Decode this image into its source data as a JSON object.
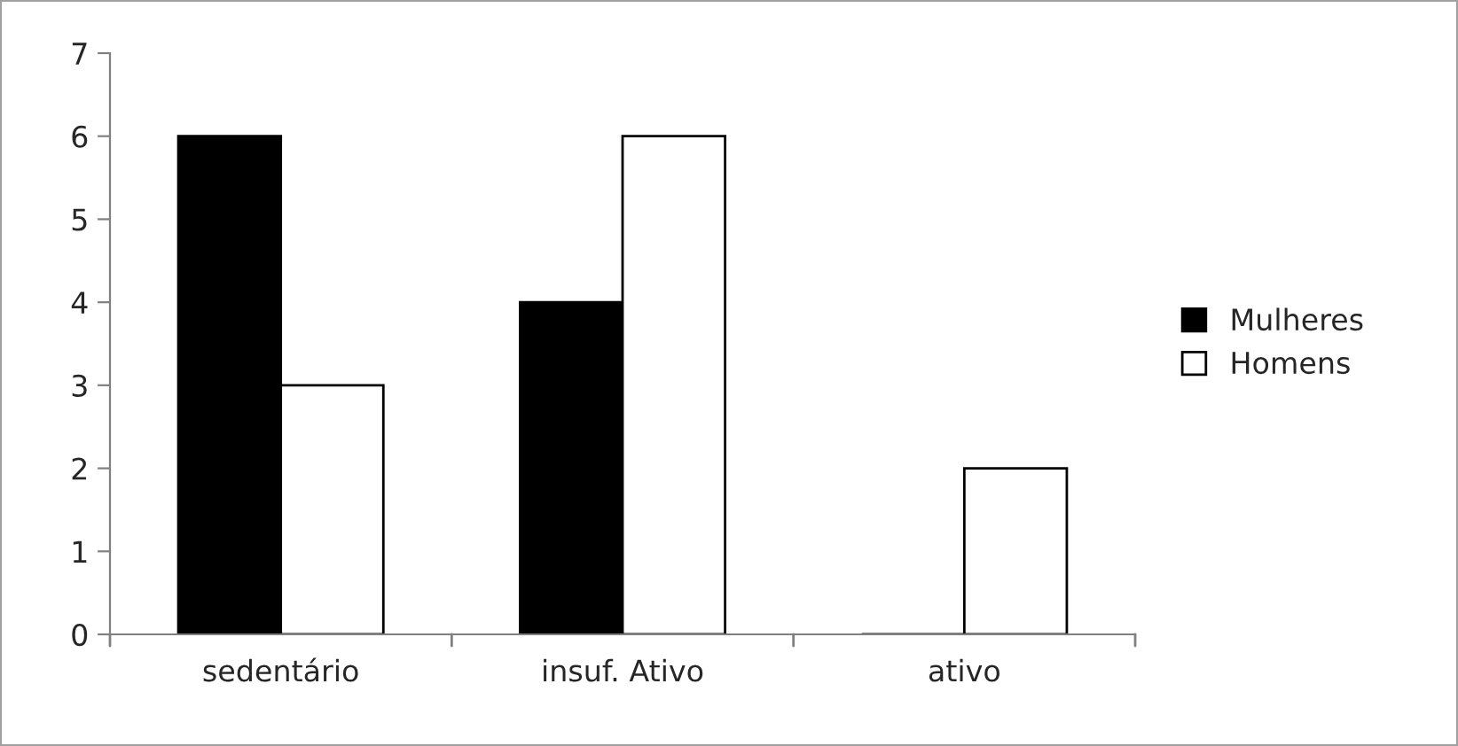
{
  "chart_data": {
    "type": "bar",
    "categories": [
      "sedentário",
      "insuf. Ativo",
      "ativo"
    ],
    "series": [
      {
        "name": "Mulheres",
        "color": "#000000",
        "values": [
          6,
          4,
          0
        ]
      },
      {
        "name": "Homens",
        "color": "#ffffff",
        "values": [
          3,
          6,
          2
        ]
      }
    ],
    "ylim": [
      0,
      7
    ],
    "yticks": [
      0,
      1,
      2,
      3,
      4,
      5,
      6,
      7
    ],
    "grid": false,
    "legend": "right"
  }
}
